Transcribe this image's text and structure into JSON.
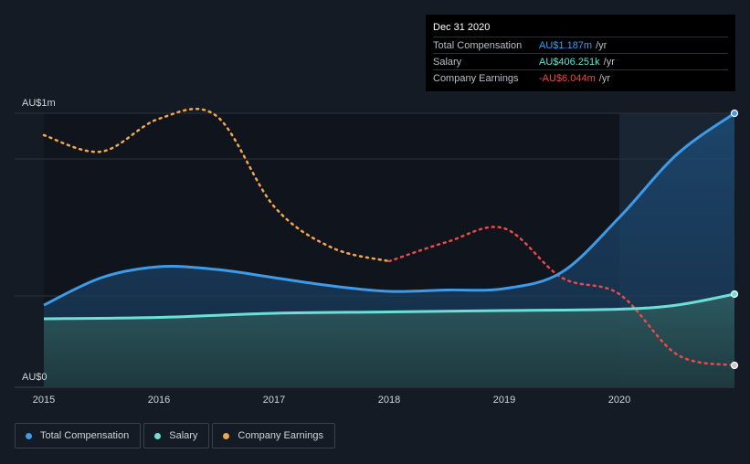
{
  "tooltip": {
    "date": "Dec 31 2020",
    "rows": [
      {
        "label": "Total Compensation",
        "value": "AU$1.187m",
        "unit": "/yr",
        "color": "#3d9be9"
      },
      {
        "label": "Salary",
        "value": "AU$406.251k",
        "unit": "/yr",
        "color": "#6ce0d8"
      },
      {
        "label": "Company Earnings",
        "value": "-AU$6.044m",
        "unit": "/yr",
        "color": "#e84a4a"
      }
    ]
  },
  "legend": [
    {
      "label": "Total Compensation",
      "color": "#3d9be9"
    },
    {
      "label": "Salary",
      "color": "#6ce0d8"
    },
    {
      "label": "Company Earnings",
      "color": "#f2a74b"
    }
  ],
  "chart_data": {
    "type": "area",
    "xlabel": "",
    "ylabel": "",
    "y_tick_labels": {
      "top": "AU$1m",
      "bottom": "AU$0"
    },
    "x_ticks": [
      "2015",
      "2016",
      "2017",
      "2018",
      "2019",
      "2020"
    ],
    "xlim": [
      2015.0,
      2021.0
    ],
    "ylim": [
      0,
      1.0
    ],
    "grid": true,
    "legend_position": "bottom-left",
    "highlight_region_start": 2020.0,
    "series": [
      {
        "name": "Total Compensation",
        "color": "#3d9be9",
        "unit": "AU$m",
        "x": [
          2015.0,
          2015.5,
          2016.0,
          2016.5,
          2017.0,
          2017.5,
          2018.0,
          2018.5,
          2019.0,
          2019.5,
          2020.0,
          2020.5,
          2021.0
        ],
        "y": [
          0.3,
          0.4,
          0.44,
          0.43,
          0.4,
          0.37,
          0.35,
          0.355,
          0.36,
          0.42,
          0.62,
          0.85,
          1.0
        ]
      },
      {
        "name": "Salary",
        "color": "#6ce0d8",
        "unit": "AU$m",
        "x": [
          2015.0,
          2016.0,
          2017.0,
          2018.0,
          2019.0,
          2020.0,
          2020.5,
          2021.0
        ],
        "y": [
          0.25,
          0.255,
          0.27,
          0.275,
          0.28,
          0.285,
          0.3,
          0.34
        ]
      },
      {
        "name": "Company Earnings",
        "color": "#f2a74b",
        "color_negative": "#e84a4a",
        "scaled_to_chart": true,
        "x": [
          2015.0,
          2015.5,
          2016.0,
          2016.5,
          2017.0,
          2017.5,
          2018.0,
          2018.5,
          2019.0,
          2019.5,
          2020.0,
          2020.5,
          2021.0
        ],
        "y": [
          0.92,
          0.86,
          0.98,
          0.99,
          0.66,
          0.51,
          0.46,
          0.53,
          0.58,
          0.4,
          0.34,
          0.12,
          0.08
        ]
      }
    ]
  }
}
